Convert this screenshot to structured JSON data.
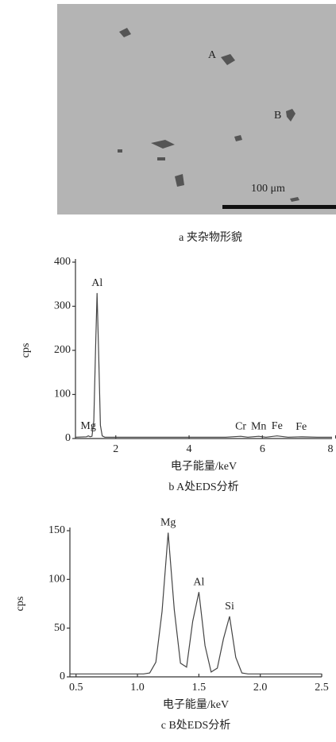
{
  "figure": {
    "panel_a": {
      "labels": [
        "A",
        "B"
      ],
      "scale_bar": "100 μm",
      "caption": "a 夹杂物形貌"
    }
  },
  "chart_data": [
    {
      "type": "line",
      "caption": "b A处EDS分析",
      "x_label": "电子能量/keV",
      "y_label": "cps",
      "color": "#444",
      "x": [
        0.9,
        1.2,
        1.25,
        1.3,
        1.35,
        1.4,
        1.45,
        1.49,
        1.53,
        1.58,
        1.63,
        1.7,
        2,
        3,
        4,
        5,
        5.41,
        5.6,
        5.9,
        6.1,
        6.4,
        6.7,
        7.06,
        7.5,
        7.9
      ],
      "values": [
        3,
        4,
        6,
        4,
        5,
        40,
        210,
        330,
        200,
        30,
        6,
        3,
        3,
        3,
        3,
        3,
        5,
        3,
        5,
        3,
        6,
        3,
        4,
        3,
        3
      ],
      "xlim": [
        0.9,
        7.9
      ],
      "ylim": [
        0,
        400
      ],
      "xticks": [
        2,
        4,
        6,
        8
      ],
      "yticks": [
        0,
        100,
        200,
        300,
        400
      ],
      "peaks": [
        {
          "label": "Mg",
          "x": 1.25
        },
        {
          "label": "Al",
          "x": 1.49
        },
        {
          "label": "Cr",
          "x": 5.41
        },
        {
          "label": "Mn",
          "x": 5.9
        },
        {
          "label": "Fe",
          "x": 6.4
        },
        {
          "label": "Fe",
          "x": 7.06
        }
      ]
    },
    {
      "type": "line",
      "caption": "c B处EDS分析",
      "x_label": "电子能量/keV",
      "y_label": "cps",
      "color": "#444",
      "x": [
        0.45,
        0.5,
        0.55,
        0.6,
        0.65,
        0.7,
        0.75,
        0.8,
        0.85,
        0.9,
        0.95,
        1.0,
        1.05,
        1.1,
        1.15,
        1.2,
        1.25,
        1.3,
        1.35,
        1.4,
        1.45,
        1.5,
        1.55,
        1.6,
        1.65,
        1.7,
        1.75,
        1.8,
        1.85,
        1.9,
        1.95,
        2.0,
        2.05,
        2.1,
        2.15,
        2.2,
        2.25,
        2.3,
        2.35,
        2.4,
        2.45,
        2.5
      ],
      "values": [
        3,
        3,
        3,
        3,
        3,
        3,
        3,
        3,
        3,
        3,
        3,
        3,
        3,
        4,
        15,
        67,
        148,
        69,
        14,
        10,
        57,
        87,
        32,
        5,
        9,
        39,
        62,
        20,
        4,
        3,
        3,
        3,
        3,
        3,
        3,
        3,
        3,
        3,
        3,
        3,
        3,
        3
      ],
      "xlim": [
        0.45,
        2.5
      ],
      "ylim": [
        0,
        150
      ],
      "xticks": [
        0.5,
        {
          "value": 1,
          "label": "1.0"
        },
        {
          "value": 1.5,
          "label": "1.5"
        },
        {
          "value": 2,
          "label": "2.0"
        },
        2.5
      ],
      "yticks": [
        0,
        50,
        100,
        150
      ],
      "peaks": [
        {
          "label": "Mg",
          "x": 1.25
        },
        {
          "label": "Al",
          "x": 1.5
        },
        {
          "label": "Si",
          "x": 1.75
        }
      ]
    }
  ]
}
